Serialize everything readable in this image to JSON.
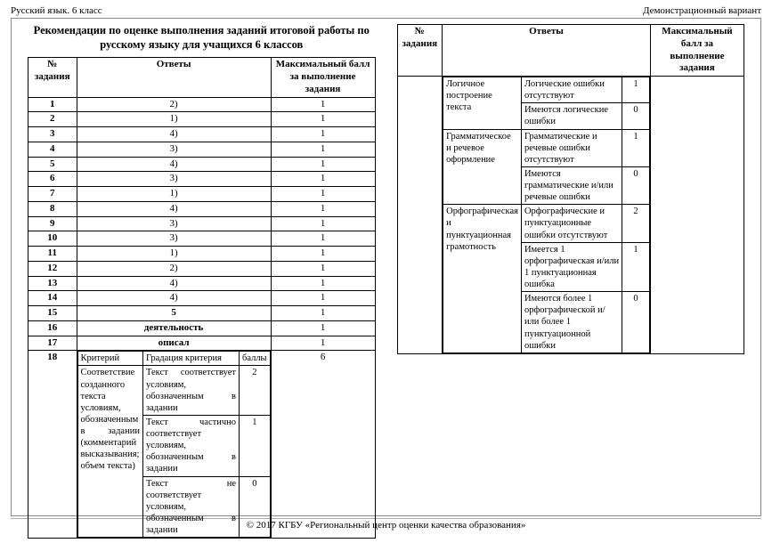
{
  "header": {
    "left": "Русский язык. 6 класс",
    "right": "Демонстрационный вариант"
  },
  "title": "Рекомендации по оценке выполнения заданий итоговой работы по русскому языку для учащихся 6 классов",
  "columns": {
    "num": "№ задания",
    "answers": "Ответы",
    "max": "Максимальный балл за выполнение задания"
  },
  "simpleRows": [
    {
      "n": "1",
      "a": "2)",
      "s": "1"
    },
    {
      "n": "2",
      "a": "1)",
      "s": "1"
    },
    {
      "n": "3",
      "a": "4)",
      "s": "1"
    },
    {
      "n": "4",
      "a": "3)",
      "s": "1"
    },
    {
      "n": "5",
      "a": "4)",
      "s": "1"
    },
    {
      "n": "6",
      "a": "3)",
      "s": "1"
    },
    {
      "n": "7",
      "a": "1)",
      "s": "1"
    },
    {
      "n": "8",
      "a": "4)",
      "s": "1"
    },
    {
      "n": "9",
      "a": "3)",
      "s": "1"
    },
    {
      "n": "10",
      "a": "3)",
      "s": "1"
    },
    {
      "n": "11",
      "a": "1)",
      "s": "1"
    },
    {
      "n": "12",
      "a": "2)",
      "s": "1"
    },
    {
      "n": "13",
      "a": "4)",
      "s": "1"
    },
    {
      "n": "14",
      "a": "4)",
      "s": "1"
    },
    {
      "n": "15",
      "a": "5",
      "s": "1",
      "bold": true
    },
    {
      "n": "16",
      "a": "деятельность",
      "s": "1",
      "bold": true
    },
    {
      "n": "17",
      "a": "описал",
      "s": "1",
      "bold": true
    }
  ],
  "row18": {
    "n": "18",
    "score": "6",
    "innerHeader": {
      "crit": "Критерий",
      "grad": "Градация критерия",
      "pts": "баллы"
    },
    "criteria": [
      {
        "name": "Соответствие созданного текста условиям, обозначенным в задании (комментарий высказывания; объем текста)",
        "levels": [
          {
            "text": "Текст соответствует условиям, обозначенным в задании",
            "pts": "2"
          },
          {
            "text": "Текст частично соответствует условиям, обозначенным в задании",
            "pts": "1"
          },
          {
            "text": "Текст не соответствует условиям, обозначенным в задании",
            "pts": "0"
          }
        ]
      }
    ]
  },
  "rightCriteria": [
    {
      "name": "Логичное построение текста",
      "levels": [
        {
          "text": "Логические ошибки отсутствуют",
          "pts": "1"
        },
        {
          "text": "Имеются логические ошибки",
          "pts": "0"
        }
      ]
    },
    {
      "name": "Грамматическое и речевое оформление",
      "levels": [
        {
          "text": "Грамматические и речевые ошибки отсутствуют",
          "pts": "1"
        },
        {
          "text": "Имеются грамматические и/или речевые ошибки",
          "pts": "0"
        }
      ]
    },
    {
      "name": "Орфографическая и пунктуационная грамотность",
      "levels": [
        {
          "text": "Орфографические и пунктуационные ошибки отсутствуют",
          "pts": "2"
        },
        {
          "text": "Имеется 1 орфографическая и/или 1 пунктуационная ошибка",
          "pts": "1"
        },
        {
          "text": "Имеются более 1 орфографической и/или более 1 пунктуационной ошибки",
          "pts": "0"
        }
      ]
    }
  ],
  "footer": "© 2017 КГБУ «Региональный центр оценки качества образования»"
}
